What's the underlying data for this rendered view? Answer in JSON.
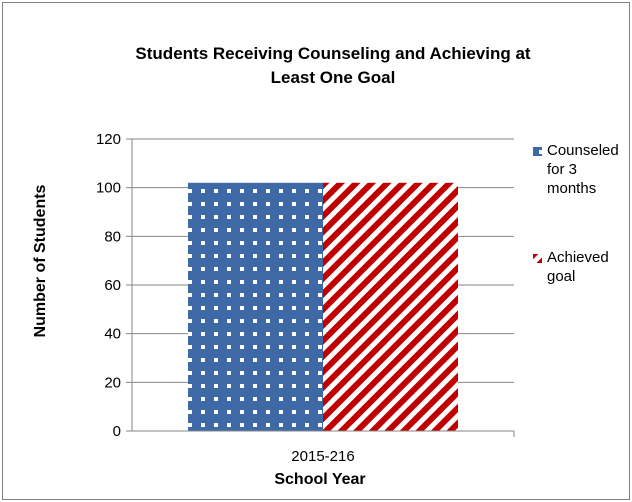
{
  "chart_data": {
    "type": "bar",
    "title_lines": [
      "Students Receiving Counseling and Achieving at",
      "Least One Goal"
    ],
    "xlabel": "School Year",
    "ylabel": "Number of Students",
    "categories": [
      "2015-216"
    ],
    "series": [
      {
        "name": "Counseled for 3 months",
        "legend_lines": [
          "Counseled",
          "for 3",
          "months"
        ],
        "values": [
          102
        ],
        "color": "#3F68A6",
        "pattern": "white-dots"
      },
      {
        "name": "Achieved goal",
        "legend_lines": [
          "Achieved",
          "goal"
        ],
        "values": [
          102
        ],
        "color": "#C00000",
        "pattern": "diagonal-stripes"
      }
    ],
    "ylim": [
      0,
      120
    ],
    "yticks": [
      0,
      20,
      40,
      60,
      80,
      100,
      120
    ],
    "grid": true,
    "legend_position": "right"
  }
}
